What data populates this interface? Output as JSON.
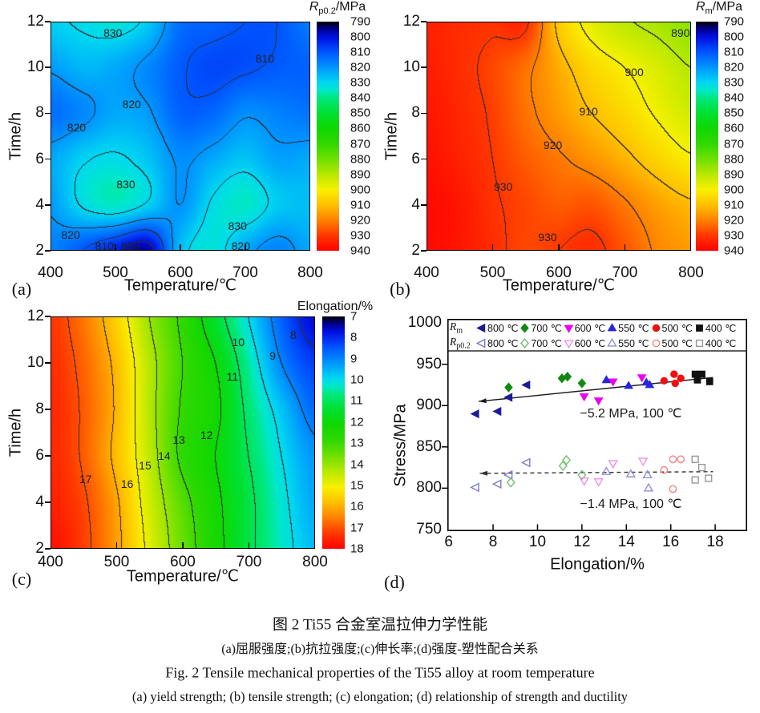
{
  "panel_letters": [
    "(a)",
    "(b)",
    "(c)",
    "(d)"
  ],
  "colormap_stops": [
    [
      0.0,
      "#000000"
    ],
    [
      0.033,
      "#000090"
    ],
    [
      0.067,
      "#0010e0"
    ],
    [
      0.133,
      "#0055ff"
    ],
    [
      0.2,
      "#0095ff"
    ],
    [
      0.267,
      "#00d8f0"
    ],
    [
      0.3,
      "#00e8c8"
    ],
    [
      0.333,
      "#00e880"
    ],
    [
      0.4,
      "#00e030"
    ],
    [
      0.467,
      "#10d800"
    ],
    [
      0.533,
      "#30d800"
    ],
    [
      0.6,
      "#70e000"
    ],
    [
      0.667,
      "#b8e800"
    ],
    [
      0.733,
      "#f8f000"
    ],
    [
      0.8,
      "#ffc000"
    ],
    [
      0.867,
      "#ff8000"
    ],
    [
      0.933,
      "#ff3800"
    ],
    [
      1.0,
      "#ff0000"
    ]
  ],
  "chart_data": [
    {
      "id": "a",
      "type": "heatmap",
      "subtype": "filled-contour",
      "xlabel": "Temperature/℃",
      "ylabel": "Time/h",
      "xticks": [
        400,
        500,
        600,
        700,
        800
      ],
      "yticks": [
        2,
        4,
        6,
        8,
        10,
        12
      ],
      "xlim": [
        400,
        800
      ],
      "ylim": [
        2,
        12
      ],
      "grid_x": [
        400,
        450,
        500,
        550,
        600,
        650,
        700,
        750,
        800
      ],
      "grid_y": [
        2,
        4,
        6,
        8,
        10,
        12
      ],
      "values": [
        [
          817,
          810,
          802,
          796,
          826,
          833,
          823,
          817,
          823
        ],
        [
          821,
          831,
          835,
          829,
          820,
          831,
          835,
          828,
          826
        ],
        [
          823,
          829,
          831,
          827,
          819,
          823,
          827,
          822,
          823
        ],
        [
          814,
          818,
          823,
          821,
          812,
          813,
          819,
          817,
          815
        ],
        [
          821,
          825,
          823,
          818,
          811,
          808,
          809,
          811,
          812
        ],
        [
          829,
          831,
          833,
          828,
          814,
          812,
          810,
          810,
          816
        ]
      ],
      "contour_interval": 10,
      "contour_labels": [
        {
          "v": "830",
          "x": 496,
          "y": 11.5
        },
        {
          "v": "810",
          "x": 730,
          "y": 10.4
        },
        {
          "v": "820",
          "x": 525,
          "y": 8.4
        },
        {
          "v": "820",
          "x": 440,
          "y": 7.4
        },
        {
          "v": "830",
          "x": 516,
          "y": 4.9
        },
        {
          "v": "830",
          "x": 688,
          "y": 3.1
        },
        {
          "v": "820",
          "x": 431,
          "y": 2.7
        },
        {
          "v": "810",
          "x": 483,
          "y": 2.2
        },
        {
          "v": "800",
          "x": 523,
          "y": 2.2
        },
        {
          "v": "820",
          "x": 693,
          "y": 2.2
        }
      ],
      "colorbar": {
        "title_main": "R",
        "title_sub": "p0.2",
        "title_rest": "/MPa",
        "min": 790,
        "max": 940,
        "ticks": [
          790,
          800,
          810,
          820,
          830,
          840,
          850,
          860,
          870,
          880,
          890,
          900,
          910,
          920,
          930,
          940
        ]
      }
    },
    {
      "id": "b",
      "type": "heatmap",
      "subtype": "filled-contour",
      "xlabel": "Temperature/℃",
      "ylabel": "Time/h",
      "xticks": [
        400,
        500,
        600,
        700,
        800
      ],
      "yticks": [
        2,
        4,
        6,
        8,
        10,
        12
      ],
      "xlim": [
        400,
        800
      ],
      "ylim": [
        2,
        12
      ],
      "grid_x": [
        400,
        450,
        500,
        550,
        600,
        650,
        700,
        750,
        800
      ],
      "grid_y": [
        2,
        4,
        6,
        8,
        10,
        12
      ],
      "values": [
        [
          938,
          936,
          932,
          928,
          930,
          932,
          926,
          919,
          916
        ],
        [
          938,
          936,
          931,
          928,
          925,
          926,
          921,
          915,
          911
        ],
        [
          937,
          934,
          930,
          925,
          921,
          917,
          912,
          906,
          901
        ],
        [
          936,
          933,
          929,
          922,
          916,
          910,
          905,
          899,
          894
        ],
        [
          935,
          932,
          928,
          922,
          913,
          905,
          900,
          895,
          890
        ],
        [
          934,
          932,
          931,
          931.5,
          908,
          897,
          891,
          888,
          884
        ]
      ],
      "contour_interval": 10,
      "contour_labels": [
        {
          "v": "890",
          "x": 784,
          "y": 11.5
        },
        {
          "v": "900",
          "x": 714,
          "y": 9.8
        },
        {
          "v": "910",
          "x": 645,
          "y": 8.1
        },
        {
          "v": "920",
          "x": 591,
          "y": 6.6
        },
        {
          "v": "930",
          "x": 516,
          "y": 4.8
        },
        {
          "v": "930",
          "x": 583,
          "y": 2.6
        }
      ],
      "colorbar": {
        "title_main": "R",
        "title_sub": "m",
        "title_rest": "/MPa",
        "min": 790,
        "max": 940,
        "ticks": [
          790,
          800,
          810,
          820,
          830,
          840,
          850,
          860,
          870,
          880,
          890,
          900,
          910,
          920,
          930,
          940
        ]
      }
    },
    {
      "id": "c",
      "type": "heatmap",
      "subtype": "filled-contour",
      "xlabel": "Temperature/℃",
      "ylabel": "Time/h",
      "xticks": [
        400,
        500,
        600,
        700,
        800
      ],
      "yticks": [
        2,
        4,
        6,
        8,
        10,
        12
      ],
      "xlim": [
        400,
        800
      ],
      "ylim": [
        2,
        12
      ],
      "grid_x": [
        400,
        450,
        500,
        550,
        600,
        650,
        700,
        750,
        800
      ],
      "grid_y": [
        2,
        4,
        6,
        8,
        10,
        12
      ],
      "values": [
        [
          17.8,
          17.2,
          16.2,
          14.8,
          13.5,
          12.3,
          11.2,
          10.3,
          9.6
        ],
        [
          17.6,
          17.1,
          16.1,
          14.6,
          13.3,
          12.2,
          11.2,
          10.2,
          9.4
        ],
        [
          17.5,
          16.9,
          15.8,
          14.4,
          12.8,
          12.0,
          11.0,
          10.0,
          9.2
        ],
        [
          17.5,
          16.9,
          15.9,
          14.3,
          12.9,
          12.2,
          10.8,
          9.7,
          8.7
        ],
        [
          17.4,
          16.8,
          15.8,
          14.3,
          13.0,
          12.0,
          10.5,
          9.0,
          8.2
        ],
        [
          17.3,
          16.6,
          15.5,
          14.0,
          12.8,
          11.4,
          10.0,
          8.6,
          7.6
        ]
      ],
      "contour_interval": 1,
      "contour_labels": [
        {
          "v": "8",
          "x": 767,
          "y": 11.2
        },
        {
          "v": "10",
          "x": 684,
          "y": 10.9
        },
        {
          "v": "9",
          "x": 736,
          "y": 10.3
        },
        {
          "v": "11",
          "x": 675,
          "y": 9.4
        },
        {
          "v": "12",
          "x": 636,
          "y": 6.9
        },
        {
          "v": "13",
          "x": 594,
          "y": 6.7
        },
        {
          "v": "14",
          "x": 572,
          "y": 6.0
        },
        {
          "v": "15",
          "x": 543,
          "y": 5.6
        },
        {
          "v": "16",
          "x": 516,
          "y": 4.8
        },
        {
          "v": "17",
          "x": 453,
          "y": 5.0
        }
      ],
      "colorbar": {
        "title": "Elongation/%",
        "min": 7,
        "max": 18,
        "ticks": [
          7,
          8,
          9,
          10,
          11,
          12,
          13,
          14,
          15,
          16,
          17,
          18
        ]
      }
    },
    {
      "id": "d",
      "type": "scatter",
      "xlabel": "Elongation/%",
      "ylabel": "Stress/MPa",
      "xticks": [
        6,
        8,
        10,
        12,
        14,
        16,
        18
      ],
      "yticks": [
        750,
        800,
        850,
        900,
        950,
        1000
      ],
      "xlim": [
        5.94,
        19.44
      ],
      "ylim": [
        748,
        1005
      ],
      "legend_rows": [
        {
          "main": "R",
          "sub": "m"
        },
        {
          "main": "R",
          "sub": "p0.2"
        }
      ],
      "series": [
        {
          "group": "Rm",
          "temp": "800 ℃",
          "marker": "tri-left",
          "filled": true,
          "color": "#1c1c96",
          "points": [
            [
              7.2,
              890
            ],
            [
              8.2,
              893
            ],
            [
              8.7,
              910
            ],
            [
              9.5,
              925
            ]
          ]
        },
        {
          "group": "Rm",
          "temp": "700 ℃",
          "marker": "diamond",
          "filled": true,
          "color": "#108a10",
          "points": [
            [
              8.7,
              922
            ],
            [
              11.1,
              933
            ],
            [
              11.35,
              935
            ],
            [
              12.0,
              927
            ]
          ]
        },
        {
          "group": "Rm",
          "temp": "600 ℃",
          "marker": "tri-down",
          "filled": true,
          "color": "#ee00ee",
          "points": [
            [
              12.1,
              911
            ],
            [
              12.75,
              906
            ],
            [
              13.4,
              929
            ],
            [
              14.7,
              934
            ]
          ]
        },
        {
          "group": "Rm",
          "temp": "550 ℃",
          "marker": "tri-up",
          "filled": true,
          "color": "#2626dd",
          "points": [
            [
              13.1,
              931
            ],
            [
              14.1,
              924
            ],
            [
              14.9,
              928
            ],
            [
              15.05,
              925
            ]
          ]
        },
        {
          "group": "Rm",
          "temp": "500 ℃",
          "marker": "circle",
          "filled": true,
          "color": "#ee1111",
          "points": [
            [
              15.7,
              930
            ],
            [
              16.15,
              938
            ],
            [
              16.2,
              927
            ],
            [
              16.45,
              933
            ]
          ]
        },
        {
          "group": "Rm",
          "temp": "400 ℃",
          "marker": "square",
          "filled": true,
          "color": "#111111",
          "points": [
            [
              17.1,
              938
            ],
            [
              17.4,
              938
            ],
            [
              17.2,
              931
            ],
            [
              17.75,
              929
            ]
          ]
        },
        {
          "group": "Rp0.2",
          "temp": "800 ℃",
          "marker": "tri-left",
          "filled": false,
          "color": "#7b7bcf",
          "points": [
            [
              7.2,
              801
            ],
            [
              8.2,
              805
            ],
            [
              8.7,
              816
            ],
            [
              9.5,
              831
            ]
          ]
        },
        {
          "group": "Rp0.2",
          "temp": "700 ℃",
          "marker": "diamond",
          "filled": false,
          "color": "#6fbe6f",
          "points": [
            [
              8.8,
              807
            ],
            [
              11.15,
              827
            ],
            [
              11.3,
              834
            ],
            [
              12.0,
              816
            ]
          ]
        },
        {
          "group": "Rp0.2",
          "temp": "600 ℃",
          "marker": "tri-down",
          "filled": false,
          "color": "#ef8fe4",
          "points": [
            [
              12.1,
              809
            ],
            [
              12.75,
              808
            ],
            [
              13.4,
              830
            ],
            [
              14.75,
              833
            ]
          ]
        },
        {
          "group": "Rp0.2",
          "temp": "550 ℃",
          "marker": "tri-up",
          "filled": false,
          "color": "#8f8fdd",
          "points": [
            [
              13.1,
              820
            ],
            [
              14.2,
              817
            ],
            [
              14.95,
              816
            ],
            [
              15.0,
              800
            ]
          ]
        },
        {
          "group": "Rp0.2",
          "temp": "500 ℃",
          "marker": "circle",
          "filled": false,
          "color": "#f28585",
          "points": [
            [
              15.7,
              822
            ],
            [
              16.1,
              835
            ],
            [
              16.45,
              835
            ],
            [
              16.1,
              799
            ]
          ]
        },
        {
          "group": "Rp0.2",
          "temp": "400 ℃",
          "marker": "square",
          "filled": false,
          "color": "#979797",
          "points": [
            [
              17.1,
              835
            ],
            [
              17.4,
              825
            ],
            [
              17.1,
              810
            ],
            [
              17.7,
              812
            ]
          ]
        }
      ],
      "trend_lines": [
        {
          "style": "solid",
          "color": "#1a1a1a",
          "x1": 7.35,
          "y1": 905,
          "x2": 17.9,
          "y2": 934,
          "label": "−5.2 MPa, 100 ℃",
          "label_x": 14.2,
          "label_y": 891
        },
        {
          "style": "dashed",
          "color": "#333333",
          "x1": 7.4,
          "y1": 818,
          "x2": 17.9,
          "y2": 820,
          "label": "−1.4 MPa, 100 ℃",
          "label_x": 14.2,
          "label_y": 781
        }
      ]
    }
  ],
  "caption": {
    "line1": "图 2  Ti55 合金室温拉伸力学性能",
    "line2": "(a)屈服强度;(b)抗拉强度;(c)伸长率;(d)强度-塑性配合关系",
    "line3": "Fig. 2  Tensile mechanical properties of the Ti55 alloy at room temperature",
    "line4": "(a) yield strength; (b) tensile strength; (c) elongation; (d) relationship of strength and ductility"
  }
}
